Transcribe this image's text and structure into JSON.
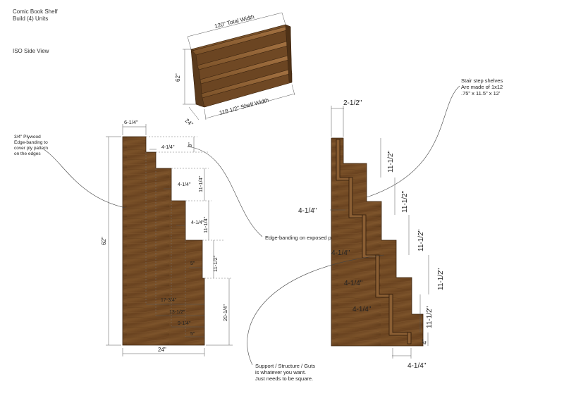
{
  "header": {
    "line1": "Comic Book Shelf",
    "line2": "Build (4) Units",
    "view": "ISO Side View"
  },
  "iso": {
    "total_width": "120\" Total Width",
    "height": "62\"",
    "depth": "24\"",
    "shelf_width": "118 1/2\" Shelf Width"
  },
  "left_view": {
    "note_lines": [
      "3/4\" Plywood",
      "Edge-banding to",
      "cover ply pattern",
      "on the edges"
    ],
    "top_width": "6-1/4\"",
    "overall_height": "62\"",
    "bottom_width": "24\"",
    "step1_depth": "4-1/4\"",
    "step1_rise": "8\"",
    "step2_depth": "4-1/4\"",
    "step2_rise": "11-1/4\"",
    "step3_depth": "4-1/4\"",
    "step3_rise": "11-1/4\"",
    "step4_depth": "5\"",
    "step4_rise": "11-1/2\"",
    "base_rise": "20-1/4\"",
    "run_17": "17-3/4\"",
    "run_13": "13-1/2\"",
    "run_9": "9-1/4\"",
    "run_5": "5\""
  },
  "edge_note": "Edge-banding on exposed ply edges",
  "right_view": {
    "top_lip": "2-1/2\"",
    "rise_labels": [
      "11-1/2\"",
      "11-1/2\"",
      "11-1/2\"",
      "11-1/2\"",
      "11-1/2\""
    ],
    "shelf_labels": [
      "4-1/4\"",
      "4-1/4\"",
      "4-1/4\"",
      "4-1/4\""
    ],
    "bottom_rise": "4\"",
    "bottom_depth": "4-1/4\"",
    "shelf_note_lines": [
      "Stair step shelves",
      "Are made of 1x12",
      ".75\" x 11.5\" x 12'"
    ],
    "support_note_lines": [
      "Support / Structure / Guts",
      "is whatever you want.",
      "Just needs to be square."
    ]
  }
}
